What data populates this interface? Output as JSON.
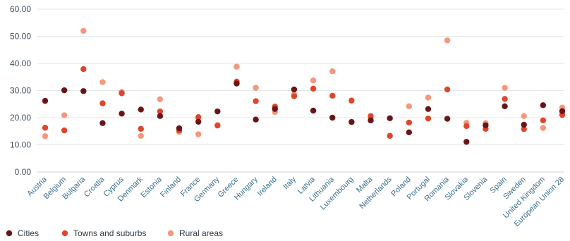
{
  "chart_data": {
    "type": "scatter",
    "title": "",
    "xlabel": "",
    "ylabel": "",
    "ylim": [
      0,
      60
    ],
    "yticks": [
      "0.00",
      "10.00",
      "20.00",
      "30.00",
      "40.00",
      "50.00",
      "60.00"
    ],
    "grid": true,
    "legend_position": "bottom-left",
    "categories": [
      "Austria",
      "Belgium",
      "Bulgaria",
      "Croatia",
      "Cyprus",
      "Denmark",
      "Estonia",
      "Finland",
      "France",
      "Germany",
      "Greece",
      "Hungary",
      "Ireland",
      "Italy",
      "Latvia",
      "Lithuania",
      "Luxembourg",
      "Malta",
      "Netherlands",
      "Poland",
      "Portugal",
      "Romania",
      "Slovakia",
      "Slovenia",
      "Spain",
      "Sweden",
      "United Kingdom",
      "European Union 28"
    ],
    "series": [
      {
        "name": "Cities",
        "color": "#6b1416",
        "values": [
          26.2,
          30.1,
          29.8,
          18.0,
          21.5,
          23.0,
          20.6,
          16.1,
          18.5,
          22.3,
          32.6,
          19.3,
          23.2,
          30.4,
          22.6,
          20.0,
          18.4,
          19.0,
          19.8,
          14.6,
          23.2,
          19.6,
          11.1,
          17.2,
          24.2,
          17.4,
          24.6,
          22.4
        ]
      },
      {
        "name": "Towns and suburbs",
        "color": "#e0452c",
        "values": [
          16.3,
          15.3,
          37.9,
          25.3,
          29.0,
          15.9,
          22.3,
          15.3,
          20.2,
          17.1,
          33.3,
          26.1,
          24.1,
          27.9,
          30.7,
          28.1,
          26.3,
          20.6,
          13.3,
          18.2,
          19.7,
          30.4,
          16.9,
          15.9,
          26.9,
          15.8,
          19.0,
          21.0
        ]
      },
      {
        "name": "Rural areas",
        "color": "#f4977a",
        "values": [
          13.2,
          20.9,
          52.0,
          33.1,
          29.5,
          13.3,
          26.8,
          14.8,
          13.9,
          17.3,
          38.8,
          31.0,
          22.1,
          28.6,
          33.7,
          37.1,
          18.5,
          19.8,
          13.3,
          24.2,
          27.4,
          48.5,
          18.1,
          18.0,
          31.0,
          20.6,
          16.2,
          23.7
        ]
      }
    ]
  }
}
